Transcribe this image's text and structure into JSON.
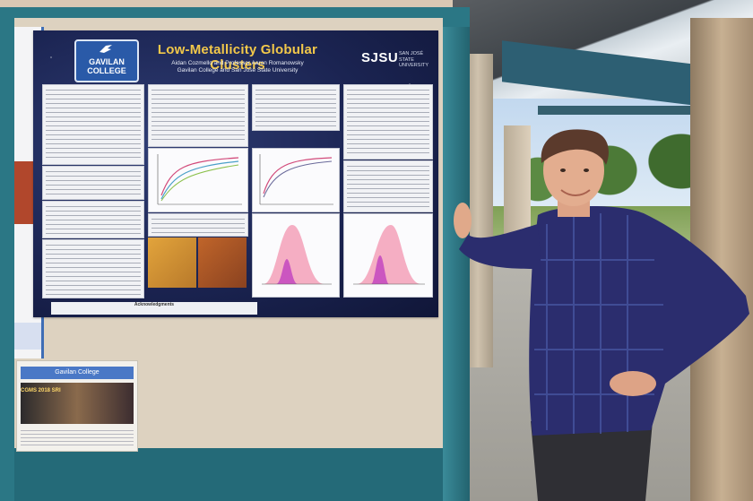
{
  "poster": {
    "title": "Low-Metallicity Globular Clusters",
    "authors_line1": "Aidan Cozmello and Professor Aaron Romanowsky",
    "authors_line2": "Gavilan College and San José State University",
    "logo_left": "GAVILAN COLLEGE",
    "logo_right": "SJSU",
    "logo_right_sub": "SAN JOSÉ STATE UNIVERSITY",
    "acknowledgments_heading": "Acknowledgments"
  },
  "flyer": {
    "heading": "Gavilan College",
    "highlight": "CGMS 2018 SRI"
  },
  "colors": {
    "poster_background": "#1b2452",
    "title_gold": "#f2c84a",
    "board_teal": "#2b7785",
    "shirt_navy": "#2b2d6e",
    "histogram_pink": "#f3a0b8",
    "histogram_magenta": "#c64cc0"
  }
}
